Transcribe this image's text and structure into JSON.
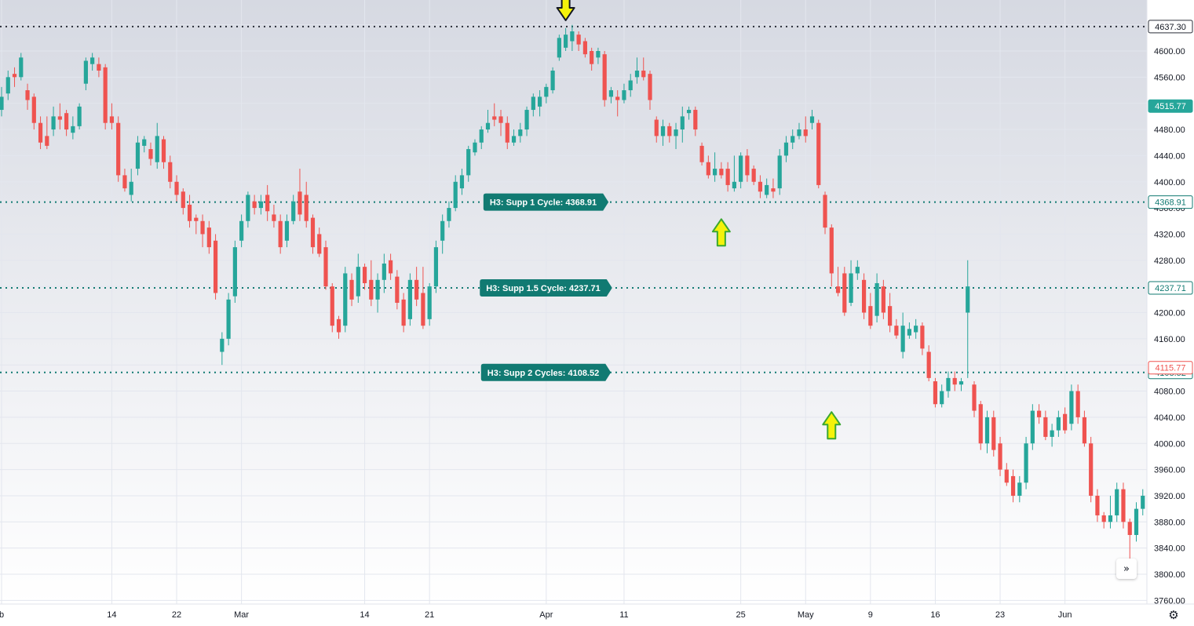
{
  "chart_data": {
    "type": "candlestick",
    "ylim": [
      3740,
      4655
    ],
    "y_ticks": [
      3760,
      3800,
      3840,
      3880,
      3920,
      3960,
      4000,
      4040,
      4080,
      4120,
      4160,
      4200,
      4240,
      4280,
      4320,
      4360,
      4400,
      4440,
      4480,
      4520,
      4560,
      4600,
      4640
    ],
    "y_tick_labels": [
      "3760.00",
      "3800.00",
      "3840.00",
      "3880.00",
      "3920.00",
      "3960.00",
      "4000.00",
      "4040.00",
      "4080.00",
      "4120.00",
      "4160.00",
      "4200.00",
      "4240.00",
      "4280.00",
      "4320.00",
      "4360.00",
      "4400.00",
      "4440.00",
      "4480.00",
      "4520.00",
      "4560.00",
      "4600.00",
      "4640.00"
    ],
    "x_ticks": [
      {
        "label": "b",
        "index": 0
      },
      {
        "label": "14",
        "index": 17
      },
      {
        "label": "22",
        "index": 27
      },
      {
        "label": "Mar",
        "index": 37
      },
      {
        "label": "14",
        "index": 56
      },
      {
        "label": "21",
        "index": 66
      },
      {
        "label": "Apr",
        "index": 84
      },
      {
        "label": "11",
        "index": 96
      },
      {
        "label": "25",
        "index": 114
      },
      {
        "label": "May",
        "index": 124
      },
      {
        "label": "9",
        "index": 134
      },
      {
        "label": "16",
        "index": 144
      },
      {
        "label": "23",
        "index": 154
      },
      {
        "label": "Jun",
        "index": 164
      }
    ],
    "candles": [
      [
        4510,
        4530,
        4500,
        4545
      ],
      [
        4535,
        4560,
        4525,
        4570
      ],
      [
        4565,
        4560,
        4545,
        4575
      ],
      [
        4560,
        4590,
        4555,
        4597
      ],
      [
        4540,
        4525,
        4510,
        4550
      ],
      [
        4530,
        4490,
        4480,
        4535
      ],
      [
        4490,
        4460,
        4450,
        4500
      ],
      [
        4470,
        4455,
        4450,
        4500
      ],
      [
        4480,
        4500,
        4470,
        4515
      ],
      [
        4500,
        4495,
        4480,
        4520
      ],
      [
        4505,
        4480,
        4470,
        4510
      ],
      [
        4475,
        4485,
        4465,
        4500
      ],
      [
        4485,
        4515,
        4480,
        4520
      ],
      [
        4550,
        4585,
        4540,
        4590
      ],
      [
        4580,
        4590,
        4570,
        4597
      ],
      [
        4580,
        4570,
        4560,
        4590
      ],
      [
        4575,
        4490,
        4480,
        4580
      ],
      [
        4500,
        4490,
        4480,
        4520
      ],
      [
        4490,
        4410,
        4400,
        4500
      ],
      [
        4410,
        4390,
        4385,
        4420
      ],
      [
        4380,
        4400,
        4370,
        4420
      ],
      [
        4420,
        4460,
        4410,
        4470
      ],
      [
        4455,
        4465,
        4445,
        4470
      ],
      [
        4450,
        4435,
        4425,
        4460
      ],
      [
        4430,
        4470,
        4420,
        4490
      ],
      [
        4465,
        4430,
        4420,
        4470
      ],
      [
        4430,
        4400,
        4390,
        4440
      ],
      [
        4400,
        4380,
        4370,
        4410
      ],
      [
        4385,
        4360,
        4350,
        4390
      ],
      [
        4365,
        4340,
        4330,
        4380
      ],
      [
        4345,
        4340,
        4320,
        4350
      ],
      [
        4340,
        4320,
        4300,
        4350
      ],
      [
        4330,
        4300,
        4290,
        4340
      ],
      [
        4310,
        4230,
        4220,
        4320
      ],
      [
        4140,
        4160,
        4120,
        4170
      ],
      [
        4160,
        4220,
        4150,
        4230
      ],
      [
        4225,
        4300,
        4215,
        4310
      ],
      [
        4310,
        4340,
        4300,
        4350
      ],
      [
        4340,
        4380,
        4330,
        4385
      ],
      [
        4370,
        4360,
        4350,
        4380
      ],
      [
        4360,
        4370,
        4350,
        4380
      ],
      [
        4380,
        4355,
        4340,
        4395
      ],
      [
        4350,
        4340,
        4330,
        4365
      ],
      [
        4340,
        4300,
        4290,
        4350
      ],
      [
        4310,
        4340,
        4300,
        4350
      ],
      [
        4340,
        4370,
        4335,
        4380
      ],
      [
        4385,
        4350,
        4340,
        4420
      ],
      [
        4380,
        4340,
        4330,
        4400
      ],
      [
        4345,
        4300,
        4290,
        4350
      ],
      [
        4320,
        4290,
        4285,
        4330
      ],
      [
        4300,
        4240,
        4235,
        4310
      ],
      [
        4240,
        4180,
        4170,
        4245
      ],
      [
        4190,
        4170,
        4160,
        4195
      ],
      [
        4180,
        4260,
        4170,
        4270
      ],
      [
        4250,
        4220,
        4210,
        4260
      ],
      [
        4225,
        4270,
        4215,
        4290
      ],
      [
        4270,
        4245,
        4235,
        4275
      ],
      [
        4250,
        4220,
        4210,
        4280
      ],
      [
        4220,
        4250,
        4200,
        4260
      ],
      [
        4250,
        4275,
        4230,
        4290
      ],
      [
        4280,
        4260,
        4250,
        4290
      ],
      [
        4255,
        4215,
        4205,
        4265
      ],
      [
        4220,
        4180,
        4170,
        4230
      ],
      [
        4190,
        4250,
        4180,
        4260
      ],
      [
        4250,
        4220,
        4210,
        4270
      ],
      [
        4230,
        4180,
        4175,
        4270
      ],
      [
        4190,
        4240,
        4180,
        4245
      ],
      [
        4240,
        4300,
        4230,
        4310
      ],
      [
        4310,
        4340,
        4290,
        4350
      ],
      [
        4340,
        4360,
        4330,
        4370
      ],
      [
        4360,
        4400,
        4355,
        4410
      ],
      [
        4390,
        4410,
        4380,
        4420
      ],
      [
        4410,
        4450,
        4400,
        4455
      ],
      [
        4445,
        4460,
        4440,
        4465
      ],
      [
        4460,
        4480,
        4450,
        4485
      ],
      [
        4480,
        4490,
        4475,
        4510
      ],
      [
        4500,
        4495,
        4485,
        4520
      ],
      [
        4500,
        4490,
        4470,
        4510
      ],
      [
        4490,
        4460,
        4450,
        4500
      ],
      [
        4460,
        4470,
        4455,
        4480
      ],
      [
        4470,
        4480,
        4460,
        4490
      ],
      [
        4480,
        4510,
        4470,
        4515
      ],
      [
        4510,
        4530,
        4500,
        4535
      ],
      [
        4515,
        4530,
        4500,
        4540
      ],
      [
        4530,
        4545,
        4520,
        4550
      ],
      [
        4540,
        4570,
        4535,
        4575
      ],
      [
        4590,
        4620,
        4585,
        4625
      ],
      [
        4605,
        4625,
        4600,
        4635
      ],
      [
        4615,
        4630,
        4600,
        4640
      ],
      [
        4625,
        4610,
        4600,
        4630
      ],
      [
        4615,
        4595,
        4590,
        4620
      ],
      [
        4600,
        4580,
        4570,
        4605
      ],
      [
        4590,
        4600,
        4580,
        4605
      ],
      [
        4595,
        4525,
        4515,
        4600
      ],
      [
        4530,
        4540,
        4520,
        4545
      ],
      [
        4530,
        4525,
        4500,
        4540
      ],
      [
        4525,
        4540,
        4520,
        4550
      ],
      [
        4540,
        4555,
        4530,
        4565
      ],
      [
        4560,
        4570,
        4550,
        4590
      ],
      [
        4570,
        4560,
        4555,
        4590
      ],
      [
        4565,
        4525,
        4510,
        4570
      ],
      [
        4495,
        4470,
        4460,
        4500
      ],
      [
        4470,
        4485,
        4455,
        4495
      ],
      [
        4485,
        4470,
        4460,
        4490
      ],
      [
        4470,
        4480,
        4450,
        4490
      ],
      [
        4480,
        4500,
        4460,
        4515
      ],
      [
        4505,
        4510,
        4495,
        4515
      ],
      [
        4510,
        4480,
        4470,
        4515
      ],
      [
        4455,
        4430,
        4425,
        4460
      ],
      [
        4430,
        4410,
        4405,
        4440
      ],
      [
        4410,
        4420,
        4400,
        4445
      ],
      [
        4420,
        4410,
        4405,
        4430
      ],
      [
        4420,
        4395,
        4385,
        4430
      ],
      [
        4390,
        4400,
        4385,
        4440
      ],
      [
        4400,
        4440,
        4390,
        4445
      ],
      [
        4440,
        4410,
        4400,
        4450
      ],
      [
        4420,
        4400,
        4395,
        4425
      ],
      [
        4400,
        4385,
        4375,
        4410
      ],
      [
        4380,
        4395,
        4375,
        4405
      ],
      [
        4390,
        4385,
        4375,
        4405
      ],
      [
        4390,
        4440,
        4380,
        4450
      ],
      [
        4440,
        4460,
        4430,
        4470
      ],
      [
        4460,
        4470,
        4450,
        4480
      ],
      [
        4470,
        4480,
        4465,
        4490
      ],
      [
        4480,
        4470,
        4460,
        4500
      ],
      [
        4490,
        4500,
        4480,
        4510
      ],
      [
        4490,
        4395,
        4390,
        4495
      ],
      [
        4380,
        4330,
        4320,
        4385
      ],
      [
        4330,
        4260,
        4240,
        4335
      ],
      [
        4240,
        4230,
        4225,
        4270
      ],
      [
        4260,
        4200,
        4195,
        4270
      ],
      [
        4215,
        4260,
        4210,
        4280
      ],
      [
        4260,
        4270,
        4250,
        4280
      ],
      [
        4250,
        4200,
        4190,
        4260
      ],
      [
        4210,
        4180,
        4175,
        4230
      ],
      [
        4195,
        4245,
        4185,
        4260
      ],
      [
        4240,
        4200,
        4190,
        4250
      ],
      [
        4210,
        4180,
        4170,
        4230
      ],
      [
        4180,
        4165,
        4160,
        4190
      ],
      [
        4140,
        4180,
        4130,
        4200
      ],
      [
        4165,
        4175,
        4160,
        4185
      ],
      [
        4170,
        4180,
        4160,
        4190
      ],
      [
        4180,
        4145,
        4135,
        4185
      ],
      [
        4140,
        4100,
        4095,
        4150
      ],
      [
        4095,
        4060,
        4055,
        4100
      ],
      [
        4060,
        4080,
        4055,
        4090
      ],
      [
        4080,
        4100,
        4070,
        4110
      ],
      [
        4100,
        4090,
        4080,
        4110
      ],
      [
        4090,
        4095,
        4080,
        4100
      ],
      [
        4200,
        4240,
        4100,
        4280
      ],
      [
        4090,
        4050,
        4040,
        4095
      ],
      [
        4060,
        4000,
        3990,
        4065
      ],
      [
        4000,
        4040,
        3985,
        4050
      ],
      [
        4040,
        3990,
        3980,
        4050
      ],
      [
        4000,
        3960,
        3950,
        4010
      ],
      [
        3960,
        3940,
        3935,
        3970
      ],
      [
        3950,
        3920,
        3910,
        3960
      ],
      [
        3920,
        3940,
        3910,
        3950
      ],
      [
        3940,
        4000,
        3930,
        4010
      ],
      [
        4000,
        4050,
        3990,
        4060
      ],
      [
        4050,
        4040,
        4030,
        4060
      ],
      [
        4040,
        4010,
        4005,
        4050
      ],
      [
        4010,
        4020,
        3995,
        4030
      ],
      [
        4020,
        4040,
        4010,
        4050
      ],
      [
        4045,
        4020,
        4015,
        4055
      ],
      [
        4030,
        4080,
        4020,
        4090
      ],
      [
        4080,
        4040,
        4030,
        4090
      ],
      [
        4040,
        4000,
        3995,
        4050
      ],
      [
        4000,
        3920,
        3910,
        4010
      ],
      [
        3920,
        3890,
        3880,
        3930
      ],
      [
        3890,
        3880,
        3870,
        3895
      ],
      [
        3880,
        3890,
        3870,
        3920
      ],
      [
        3890,
        3930,
        3880,
        3940
      ],
      [
        3930,
        3880,
        3870,
        3940
      ],
      [
        3880,
        3860,
        3810,
        3885
      ],
      [
        3860,
        3900,
        3850,
        3910
      ],
      [
        3900,
        3920,
        3890,
        3930
      ],
      [
        3920,
        3960,
        3910,
        3970
      ],
      [
        3960,
        3920,
        3910,
        3970
      ],
      [
        3920,
        3880,
        3870,
        3930
      ],
      [
        3880,
        3960,
        3870,
        3970
      ],
      [
        3960,
        4000,
        3950,
        4010
      ],
      [
        4000,
        4050,
        3990,
        4060
      ],
      [
        4050,
        4080,
        4040,
        4090
      ],
      [
        4080,
        4130,
        4075,
        4140
      ],
      [
        4120,
        4160,
        4110,
        4170
      ],
      [
        4150,
        4130,
        4120,
        4160
      ],
      [
        4130,
        4140,
        4115,
        4150
      ],
      [
        4140,
        4100,
        4090,
        4160
      ],
      [
        4110,
        4160,
        4100,
        4175
      ],
      [
        4160,
        4130,
        4110,
        4170
      ],
      [
        4125,
        4100,
        4090,
        4140
      ],
      [
        4100,
        4130,
        4095,
        4160
      ],
      [
        4130,
        4110,
        4100,
        4140
      ],
      [
        4110,
        4150,
        4100,
        4165
      ],
      [
        4155,
        4120,
        4110,
        4165
      ],
      [
        4120,
        4160,
        4110,
        4170
      ],
      [
        4155,
        4115,
        4105,
        4165
      ]
    ],
    "levels": [
      {
        "name": "H3: Supp 1 Cycle: 4368.91",
        "value": 4368.91,
        "axis_label": "4368.91"
      },
      {
        "name": "H3: Supp 1.5 Cycle: 4237.71",
        "value": 4237.71,
        "axis_label": "4237.71"
      },
      {
        "name": "H3: Supp 2 Cycles: 4108.52",
        "value": 4108.52,
        "axis_label": "4108.52"
      }
    ],
    "top_line": {
      "value": 4637.3,
      "axis_label": "4637.30"
    },
    "current_price": {
      "value": 4515.77,
      "axis_label": "4515.77"
    },
    "last_price": {
      "value": 4115.77,
      "axis_label": "4115.77"
    },
    "arrows": [
      {
        "direction": "down",
        "index": 87,
        "price": 4642
      },
      {
        "direction": "up",
        "index": 111,
        "price": 4355
      },
      {
        "direction": "up",
        "index": 128,
        "price": 4060
      }
    ],
    "colors": {
      "up": "#26a69a",
      "down": "#ef5350",
      "level": "#117a72",
      "top_line": "#2a2e39",
      "arrow_fill": "#f5f20a",
      "arrow_stroke_up": "#3ba831",
      "arrow_stroke_down": "#131722"
    }
  },
  "ui": {
    "scroll_right_icon": "double-chevron-right-icon",
    "settings_icon": "gear-icon",
    "scroll_right_glyph": "»",
    "settings_glyph": "⚙"
  }
}
